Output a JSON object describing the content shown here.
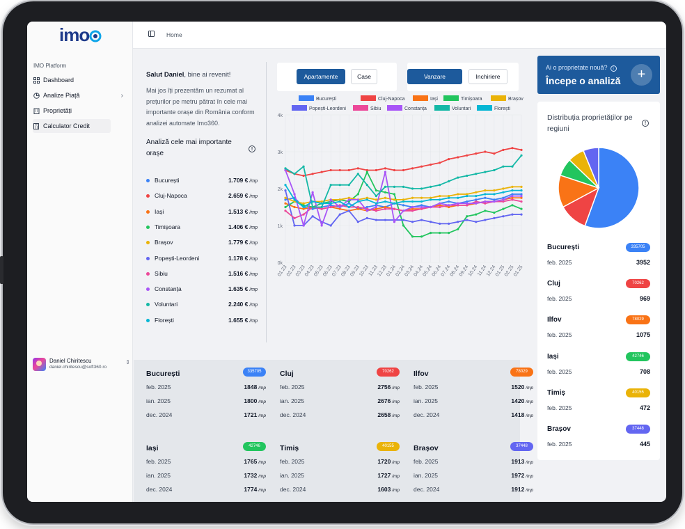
{
  "app": {
    "logo": "imo",
    "platform": "IMO Platform"
  },
  "nav": [
    {
      "label": "Dashboard",
      "icon": "grid-icon"
    },
    {
      "label": "Analize Piață",
      "icon": "pie-chart-icon"
    },
    {
      "label": "Proprietăți",
      "icon": "building-icon"
    },
    {
      "label": "Calculator Credit",
      "icon": "calculator-icon"
    }
  ],
  "user": {
    "name": "Daniel Chiritescu",
    "email": "daniel.chiritescu@soft360.ro"
  },
  "header": {
    "breadcrumb": "Home"
  },
  "intro": {
    "greeting_name": "Salut Daniel",
    "greeting_rest": ", bine ai revenit!",
    "body": "Mai jos îți prezentăm un rezumat al prețurilor pe metru pătrat în cele mai importante orașe din România conform analizei automate Imo360.",
    "analiza_title": "Analiză cele mai importante orașe"
  },
  "unit": "/mp",
  "cities": [
    {
      "name": "București",
      "price": "1.709 €",
      "color": "#3b82f6"
    },
    {
      "name": "Cluj-Napoca",
      "price": "2.659 €",
      "color": "#ef4444"
    },
    {
      "name": "Iași",
      "price": "1.513 €",
      "color": "#f97316"
    },
    {
      "name": "Timișoara",
      "price": "1.406 €",
      "color": "#22c55e"
    },
    {
      "name": "Brașov",
      "price": "1.779 €",
      "color": "#eab308"
    },
    {
      "name": "Popești-Leordeni",
      "price": "1.178 €",
      "color": "#6366f1"
    },
    {
      "name": "Sibiu",
      "price": "1.516 €",
      "color": "#ec4899"
    },
    {
      "name": "Constanța",
      "price": "1.635 €",
      "color": "#a855f7"
    },
    {
      "name": "Voluntari",
      "price": "2.240 €",
      "color": "#14b8a6"
    },
    {
      "name": "Florești",
      "price": "1.655 €",
      "color": "#06b6d4"
    }
  ],
  "toggles": {
    "type": [
      "Apartamente",
      "Case"
    ],
    "transaction": [
      "Vanzare",
      "Inchiriere"
    ]
  },
  "cta": {
    "question": "Ai o proprietate nouă?",
    "title": "Începe o analiză"
  },
  "distribution": {
    "title": "Distribuția proprietăților pe regiuni",
    "rows": [
      {
        "region": "București",
        "badge": "335705",
        "date": "feb. 2025",
        "value": "3952",
        "color": "#3b82f6"
      },
      {
        "region": "Cluj",
        "badge": "70262",
        "date": "feb. 2025",
        "value": "969",
        "color": "#ef4444"
      },
      {
        "region": "Ilfov",
        "badge": "78029",
        "date": "feb. 2025",
        "value": "1075",
        "color": "#f97316"
      },
      {
        "region": "Iași",
        "badge": "42746",
        "date": "feb. 2025",
        "value": "708",
        "color": "#22c55e"
      },
      {
        "region": "Timiș",
        "badge": "40155",
        "date": "feb. 2025",
        "value": "472",
        "color": "#eab308"
      },
      {
        "region": "Brașov",
        "badge": "37448",
        "date": "feb. 2025",
        "value": "445",
        "color": "#6366f1"
      }
    ]
  },
  "region_cards": [
    {
      "region": "București",
      "badge": "335705",
      "color": "#3b82f6",
      "rows": [
        {
          "d": "feb. 2025",
          "v": "1848"
        },
        {
          "d": "ian. 2025",
          "v": "1800"
        },
        {
          "d": "dec. 2024",
          "v": "1721"
        }
      ]
    },
    {
      "region": "Cluj",
      "badge": "70262",
      "color": "#ef4444",
      "rows": [
        {
          "d": "feb. 2025",
          "v": "2756"
        },
        {
          "d": "ian. 2025",
          "v": "2676"
        },
        {
          "d": "dec. 2024",
          "v": "2658"
        }
      ]
    },
    {
      "region": "Ilfov",
      "badge": "78029",
      "color": "#f97316",
      "rows": [
        {
          "d": "feb. 2025",
          "v": "1520"
        },
        {
          "d": "ian. 2025",
          "v": "1420"
        },
        {
          "d": "dec. 2024",
          "v": "1418"
        }
      ]
    },
    {
      "region": "Iași",
      "badge": "42746",
      "color": "#22c55e",
      "rows": [
        {
          "d": "feb. 2025",
          "v": "1765"
        },
        {
          "d": "ian. 2025",
          "v": "1732"
        },
        {
          "d": "dec. 2024",
          "v": "1774"
        }
      ]
    },
    {
      "region": "Timiș",
      "badge": "40155",
      "color": "#eab308",
      "rows": [
        {
          "d": "feb. 2025",
          "v": "1720"
        },
        {
          "d": "ian. 2025",
          "v": "1727"
        },
        {
          "d": "dec. 2024",
          "v": "1603"
        }
      ]
    },
    {
      "region": "Brașov",
      "badge": "37448",
      "color": "#6366f1",
      "rows": [
        {
          "d": "feb. 2025",
          "v": "1913"
        },
        {
          "d": "ian. 2025",
          "v": "1972"
        },
        {
          "d": "dec. 2024",
          "v": "1912"
        }
      ]
    }
  ],
  "chart_data": [
    {
      "type": "line",
      "x": [
        "01.23",
        "02.23",
        "03.23",
        "04.23",
        "05.23",
        "06.23",
        "07.23",
        "08.23",
        "09.23",
        "10.23",
        "11.23",
        "12.23",
        "01.24",
        "02.24",
        "03.24",
        "04.24",
        "05.24",
        "06.24",
        "07.24",
        "08.24",
        "09.24",
        "10.24",
        "11.24",
        "12.24",
        "01.25",
        "02.25",
        "01.25"
      ],
      "yticks": [
        "0k",
        "1k",
        "2k",
        "3k",
        "4k"
      ],
      "ylim": [
        0,
        4000
      ],
      "grid": true,
      "legend_position": "top",
      "series": [
        {
          "name": "București",
          "color": "#3b82f6",
          "values": [
            1700,
            1750,
            1500,
            1450,
            1500,
            1550,
            1500,
            1600,
            1450,
            1500,
            1550,
            1500,
            1600,
            1550,
            1500,
            1550,
            1500,
            1600,
            1650,
            1600,
            1650,
            1700,
            1750,
            1700,
            1750,
            1850,
            1850
          ]
        },
        {
          "name": "Cluj-Napoca",
          "color": "#ef4444",
          "values": [
            2500,
            2400,
            2350,
            2400,
            2450,
            2500,
            2500,
            2500,
            2550,
            2500,
            2500,
            2550,
            2500,
            2500,
            2550,
            2600,
            2650,
            2700,
            2800,
            2850,
            2900,
            2950,
            3000,
            2950,
            3050,
            3100,
            3050
          ]
        },
        {
          "name": "Iași",
          "color": "#f97316",
          "values": [
            1600,
            1500,
            1450,
            1500,
            1450,
            1500,
            1450,
            1400,
            1450,
            1400,
            1450,
            1500,
            1450,
            1400,
            1450,
            1450,
            1500,
            1550,
            1500,
            1550,
            1550,
            1600,
            1650,
            1650,
            1700,
            1750,
            1750
          ]
        },
        {
          "name": "Timișoara",
          "color": "#22c55e",
          "values": [
            1500,
            1650,
            1550,
            1500,
            1600,
            1650,
            1700,
            1650,
            1850,
            2450,
            1950,
            1900,
            1850,
            1000,
            700,
            700,
            800,
            800,
            800,
            900,
            1250,
            1300,
            1400,
            1350,
            1450,
            1550,
            1450
          ]
        },
        {
          "name": "Brașov",
          "color": "#eab308",
          "values": [
            1750,
            1650,
            1600,
            1650,
            1650,
            1700,
            1700,
            1750,
            1700,
            1750,
            1700,
            1750,
            1700,
            1700,
            1750,
            1750,
            1750,
            1800,
            1800,
            1850,
            1850,
            1900,
            1950,
            1950,
            2000,
            2050,
            2050
          ]
        },
        {
          "name": "Popești-Leordeni",
          "color": "#6366f1",
          "values": [
            1950,
            1000,
            1000,
            1250,
            1100,
            1000,
            1300,
            1400,
            1100,
            1200,
            1150,
            1150,
            1150,
            1150,
            1100,
            1150,
            1100,
            1050,
            1050,
            1100,
            1150,
            1100,
            1150,
            1200,
            1250,
            1300,
            1300
          ]
        },
        {
          "name": "Sibiu",
          "color": "#ec4899",
          "values": [
            1400,
            1200,
            1300,
            1500,
            1450,
            1500,
            1550,
            1500,
            1500,
            1450,
            1400,
            1450,
            1450,
            1400,
            1400,
            1450,
            1500,
            1500,
            1550,
            1550,
            1550,
            1650,
            1600,
            1650,
            1650,
            1700,
            1650
          ]
        },
        {
          "name": "Constanța",
          "color": "#a855f7",
          "values": [
            2500,
            1850,
            1000,
            1900,
            1000,
            1700,
            1500,
            1700,
            1700,
            1400,
            1500,
            2450,
            1100,
            1400,
            1500,
            1500,
            1500,
            1600,
            1550,
            1600,
            1600,
            1600,
            1650,
            1650,
            1700,
            1800,
            1800
          ]
        },
        {
          "name": "Voluntari",
          "color": "#14b8a6",
          "values": [
            2550,
            2400,
            2600,
            1500,
            1500,
            2100,
            2100,
            2100,
            2400,
            2100,
            1800,
            2050,
            2050,
            2050,
            2000,
            2000,
            2050,
            2100,
            2200,
            2300,
            2350,
            2400,
            2450,
            2500,
            2600,
            2600,
            2900
          ]
        },
        {
          "name": "Florești",
          "color": "#06b6d4",
          "values": [
            2100,
            1700,
            1500,
            1650,
            1600,
            1600,
            1650,
            1500,
            1650,
            1700,
            1600,
            1650,
            1600,
            1650,
            1650,
            1650,
            1700,
            1700,
            1750,
            1750,
            1800,
            1800,
            1850,
            1850,
            1900,
            1950,
            1950
          ]
        }
      ]
    },
    {
      "type": "pie",
      "title": "Distribuția proprietăților pe regiuni",
      "labels": [
        "București",
        "Cluj",
        "Ilfov",
        "Iași",
        "Timiș",
        "Brașov"
      ],
      "values": [
        335705,
        70262,
        78029,
        42746,
        40155,
        37448
      ],
      "colors": [
        "#3b82f6",
        "#ef4444",
        "#f97316",
        "#22c55e",
        "#eab308",
        "#6366f1"
      ]
    }
  ]
}
